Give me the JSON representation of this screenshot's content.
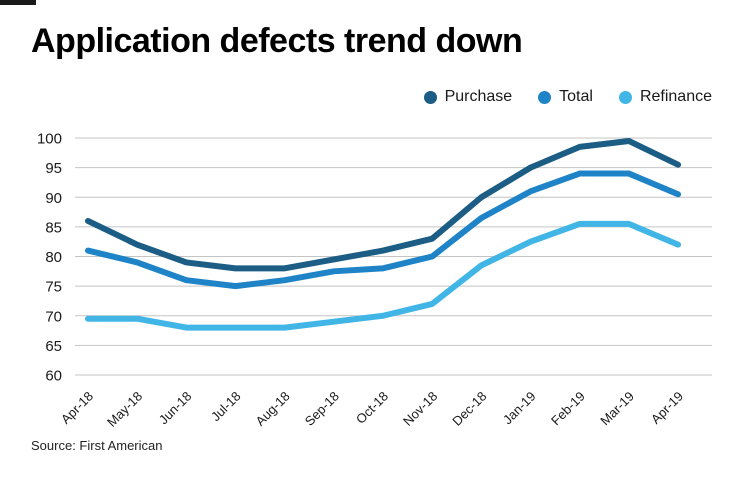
{
  "title": "Application defects trend down",
  "source": "Source: First American",
  "colors": {
    "purchase": "#1b5d85",
    "total": "#1f84c7",
    "refinance": "#41b6e6",
    "grid": "#c4c4c4",
    "accent": "#1a1a1a"
  },
  "legend": [
    {
      "label": "Purchase",
      "color": "#1b5d85"
    },
    {
      "label": "Total",
      "color": "#1f84c7"
    },
    {
      "label": "Refinance",
      "color": "#41b6e6"
    }
  ],
  "chart_data": {
    "type": "line",
    "title": "Application defects trend down",
    "categories": [
      "Apr-18",
      "May-18",
      "Jun-18",
      "Jul-18",
      "Aug-18",
      "Sep-18",
      "Oct-18",
      "Nov-18",
      "Dec-18",
      "Jan-19",
      "Feb-19",
      "Mar-19",
      "Apr-19"
    ],
    "series": [
      {
        "name": "Purchase",
        "color": "#1b5d85",
        "values": [
          86,
          82,
          79,
          78,
          78,
          79.5,
          81,
          83,
          90,
          95,
          98.5,
          99.5,
          95.5
        ]
      },
      {
        "name": "Total",
        "color": "#1f84c7",
        "values": [
          81,
          79,
          76,
          75,
          76,
          77.5,
          78,
          80,
          86.5,
          91,
          94,
          94,
          90.5
        ]
      },
      {
        "name": "Refinance",
        "color": "#41b6e6",
        "values": [
          69.5,
          69.5,
          68,
          68,
          68,
          69,
          70,
          72,
          78.5,
          82.5,
          85.5,
          85.5,
          82
        ]
      }
    ],
    "xlabel": "",
    "ylabel": "",
    "ylim": [
      60,
      100
    ],
    "yticks": [
      100,
      95,
      90,
      85,
      80,
      75,
      70,
      65,
      60
    ],
    "grid": true,
    "legend_position": "top-right"
  }
}
